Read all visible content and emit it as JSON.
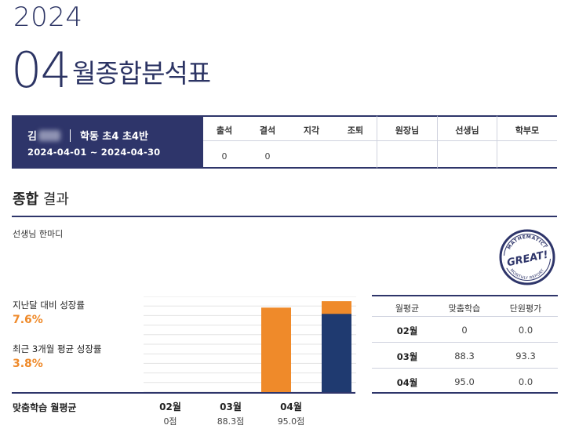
{
  "header": {
    "year": "2024",
    "month": "04",
    "title": "월종합분석표"
  },
  "student": {
    "name_visible": "김",
    "class": "학동 초4 초4반",
    "period": "2024-04-01 ~ 2024-04-30"
  },
  "attendance": {
    "headers": [
      "출석",
      "결석",
      "지각",
      "조퇴"
    ],
    "values": [
      "0",
      "0",
      "",
      ""
    ]
  },
  "signatures": [
    "원장님",
    "선생님",
    "학부모"
  ],
  "summary_section": {
    "title_bold": "종합",
    "title_rest": " 결과",
    "comment_label": "선생님 한마디"
  },
  "stamp": {
    "text_top": "MATHEMATICS",
    "text_center": "GREAT!",
    "text_bottom": "MONTHLY REPORT",
    "color": "#2e356a"
  },
  "growth": {
    "last_month_label": "지난달 대비 성장률",
    "last_month_value": "7.6%",
    "three_month_label": "최근 3개월 평균 성장률",
    "three_month_value": "3.8%"
  },
  "chart_data": {
    "type": "bar",
    "categories": [
      "02월",
      "03월",
      "04월"
    ],
    "series": [
      {
        "name": "맞춤학습",
        "values": [
          0,
          88.3,
          95.0
        ],
        "color": "#ef8a2a"
      }
    ],
    "current_month_highlight": {
      "category": "04월",
      "color": "#1f3a70"
    },
    "score_labels": [
      "0점",
      "88.3점",
      "95.0점"
    ],
    "xlabel": "맞춤학습 월평균",
    "ylim": [
      0,
      100
    ]
  },
  "summary_table": {
    "headers": [
      "월평균",
      "맞춤학습",
      "단원평가"
    ],
    "rows": [
      {
        "month": "02월",
        "custom": "0",
        "unit": "0.0"
      },
      {
        "month": "03월",
        "custom": "88.3",
        "unit": "93.3"
      },
      {
        "month": "04월",
        "custom": "95.0",
        "unit": "0.0"
      }
    ]
  },
  "colors": {
    "navy": "#2e356a",
    "orange": "#ef8a2a",
    "dark_blue_bar": "#1f3a70"
  }
}
